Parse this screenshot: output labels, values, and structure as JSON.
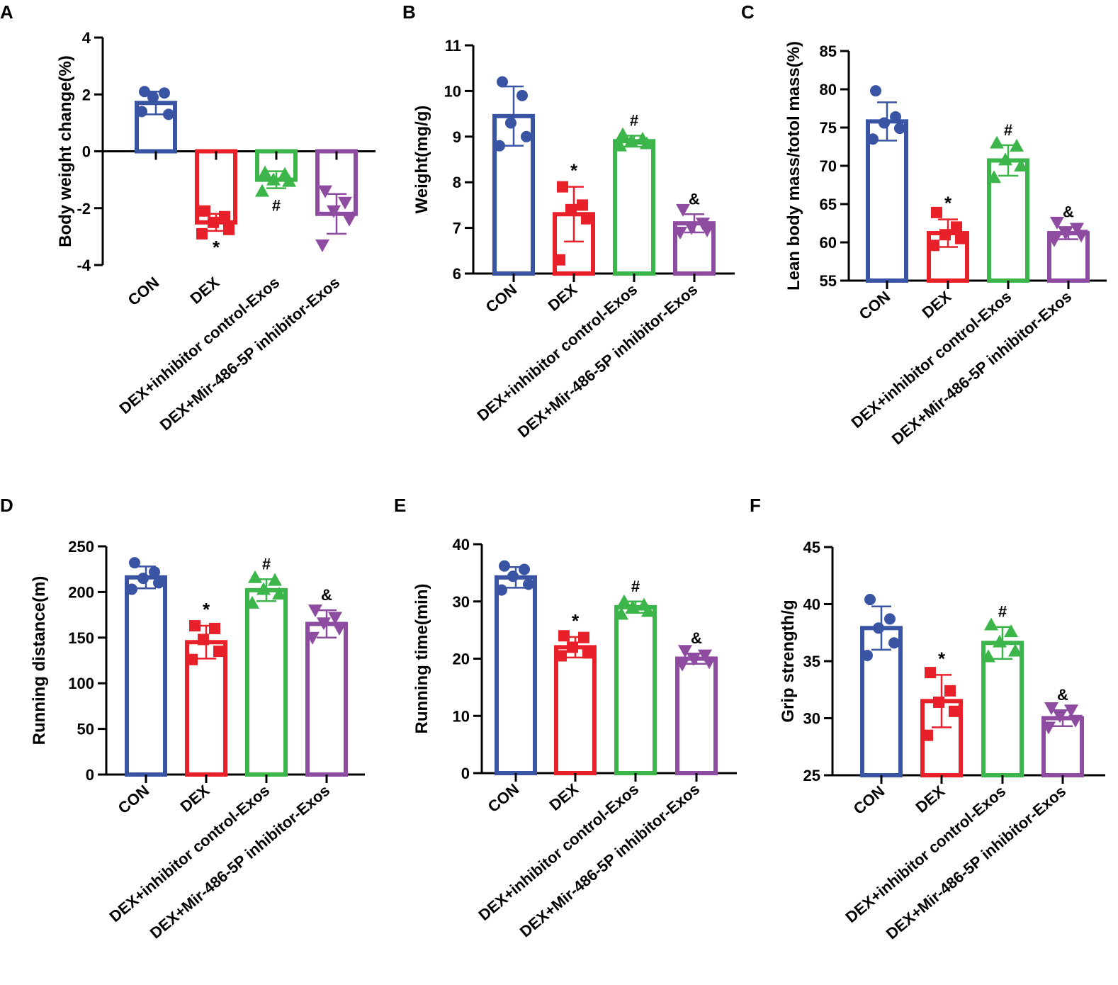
{
  "chart_data": [
    {
      "type": "bar",
      "panel": "A",
      "ylabel": "Body weight change(%)",
      "ylim": [
        -4,
        4
      ],
      "yticks": [
        -4,
        -2,
        0,
        2,
        4
      ],
      "categories": [
        "CON",
        "DEX",
        "DEX+inhibitor control-Exos",
        "DEX+Mir-486-5P inhibitor-Exos"
      ],
      "colors": [
        "#3a54a4",
        "#e8202a",
        "#3cb54a",
        "#8e4ca0"
      ],
      "markers": [
        "circle",
        "square",
        "triangle-up",
        "triangle-down"
      ],
      "values": [
        1.7,
        -2.5,
        -1.0,
        -2.2
      ],
      "error": [
        0.4,
        0.3,
        0.3,
        0.7
      ],
      "points": [
        [
          2.1,
          2.05,
          1.9,
          1.3,
          1.4
        ],
        [
          -2.1,
          -2.3,
          -2.5,
          -2.75,
          -2.9
        ],
        [
          -0.75,
          -0.8,
          -1.0,
          -1.05,
          -1.4
        ],
        [
          -1.4,
          -1.8,
          -2.1,
          -2.4,
          -3.3
        ]
      ],
      "significance": [
        "",
        "*",
        "#",
        ""
      ]
    },
    {
      "type": "bar",
      "panel": "B",
      "ylabel": "Weight(mg/g)",
      "ylim": [
        6,
        11
      ],
      "yticks": [
        6,
        7,
        8,
        9,
        10,
        11
      ],
      "categories": [
        "CON",
        "DEX",
        "DEX+inhibitor control-Exos",
        "DEX+Mir-486-5P inhibitor-Exos"
      ],
      "colors": [
        "#3a54a4",
        "#e8202a",
        "#3cb54a",
        "#8e4ca0"
      ],
      "markers": [
        "circle",
        "square",
        "triangle-up",
        "triangle-down"
      ],
      "values": [
        9.45,
        7.3,
        8.9,
        7.1
      ],
      "error": [
        0.65,
        0.6,
        0.12,
        0.2
      ],
      "points": [
        [
          10.2,
          9.9,
          9.3,
          9.0,
          8.8
        ],
        [
          7.9,
          7.5,
          7.4,
          7.2,
          6.3
        ],
        [
          9.05,
          8.95,
          8.9,
          8.85,
          8.8
        ],
        [
          7.4,
          7.1,
          7.0,
          6.95,
          6.9
        ]
      ],
      "significance": [
        "",
        "*",
        "#",
        "&"
      ]
    },
    {
      "type": "bar",
      "panel": "C",
      "ylabel": "Lean body mass/totol mass(%)",
      "ylim": [
        55,
        85
      ],
      "yticks": [
        55,
        60,
        65,
        70,
        75,
        80,
        85
      ],
      "categories": [
        "CON",
        "DEX",
        "DEX+inhibitor control-Exos",
        "DEX+Mir-486-5P inhibitor-Exos"
      ],
      "colors": [
        "#3a54a4",
        "#e8202a",
        "#3cb54a",
        "#8e4ca0"
      ],
      "markers": [
        "circle",
        "square",
        "triangle-up",
        "triangle-down"
      ],
      "values": [
        75.8,
        61.2,
        70.7,
        61.2
      ],
      "error": [
        2.5,
        1.8,
        2.0,
        0.8
      ],
      "points": [
        [
          79.8,
          76.4,
          75.6,
          74.9,
          73.5
        ],
        [
          63.9,
          62.0,
          61.0,
          60.5,
          59.6
        ],
        [
          73.0,
          72.6,
          70.8,
          70.0,
          68.5
        ],
        [
          62.6,
          61.8,
          61.2,
          60.9,
          60.3
        ]
      ],
      "significance": [
        "",
        "*",
        "#",
        "&"
      ]
    },
    {
      "type": "bar",
      "panel": "D",
      "ylabel": "Running distance(m)",
      "ylim": [
        0,
        250
      ],
      "yticks": [
        0,
        50,
        100,
        150,
        200,
        250
      ],
      "categories": [
        "CON",
        "DEX",
        "DEX+inhibitor control-Exos",
        "DEX+Mir-486-5P inhibitor-Exos"
      ],
      "colors": [
        "#3a54a4",
        "#e8202a",
        "#3cb54a",
        "#8e4ca0"
      ],
      "markers": [
        "circle",
        "square",
        "triangle-up",
        "triangle-down"
      ],
      "values": [
        216,
        145,
        202,
        165
      ],
      "error": [
        12,
        18,
        12,
        15
      ],
      "points": [
        [
          232,
          222,
          215,
          210,
          203
        ],
        [
          163,
          160,
          148,
          135,
          126
        ],
        [
          216,
          213,
          203,
          198,
          188
        ],
        [
          180,
          172,
          166,
          160,
          150
        ]
      ],
      "significance": [
        "",
        "*",
        "#",
        "&"
      ]
    },
    {
      "type": "bar",
      "panel": "E",
      "ylabel": "Running time(min)",
      "ylim": [
        0,
        40
      ],
      "yticks": [
        0,
        10,
        20,
        30,
        40
      ],
      "categories": [
        "CON",
        "DEX",
        "DEX+inhibitor control-Exos",
        "DEX+Mir-486-5P inhibitor-Exos"
      ],
      "colors": [
        "#3a54a4",
        "#e8202a",
        "#3cb54a",
        "#8e4ca0"
      ],
      "markers": [
        "circle",
        "square",
        "triangle-up",
        "triangle-down"
      ],
      "values": [
        34.2,
        22.0,
        29.0,
        20.0
      ],
      "error": [
        1.8,
        1.8,
        1.0,
        0.9
      ],
      "points": [
        [
          36.2,
          35.6,
          34.4,
          33.0,
          32.0
        ],
        [
          24.0,
          23.7,
          22.0,
          21.0,
          20.5
        ],
        [
          30.0,
          29.4,
          29.0,
          28.3,
          27.8
        ],
        [
          21.4,
          20.6,
          20.0,
          19.4,
          19.0
        ]
      ],
      "significance": [
        "",
        "*",
        "#",
        "&"
      ]
    },
    {
      "type": "bar",
      "panel": "F",
      "ylabel": "Grip strength/g",
      "ylim": [
        25,
        45
      ],
      "yticks": [
        25,
        30,
        35,
        40,
        45
      ],
      "categories": [
        "CON",
        "DEX",
        "DEX+inhibitor control-Exos",
        "DEX+Mir-486-5P inhibitor-Exos"
      ],
      "colors": [
        "#3a54a4",
        "#e8202a",
        "#3cb54a",
        "#8e4ca0"
      ],
      "markers": [
        "circle",
        "square",
        "triangle-up",
        "triangle-down"
      ],
      "values": [
        37.9,
        31.5,
        36.6,
        30.0
      ],
      "error": [
        1.9,
        2.3,
        1.4,
        0.7
      ],
      "points": [
        [
          40.4,
          38.7,
          37.9,
          36.6,
          35.5
        ],
        [
          34.0,
          32.4,
          31.4,
          30.6,
          28.5
        ],
        [
          38.2,
          37.6,
          36.7,
          35.9,
          35.4
        ],
        [
          30.9,
          30.7,
          30.2,
          29.8,
          29.2
        ]
      ],
      "significance": [
        "",
        "*",
        "#",
        "&"
      ]
    }
  ]
}
